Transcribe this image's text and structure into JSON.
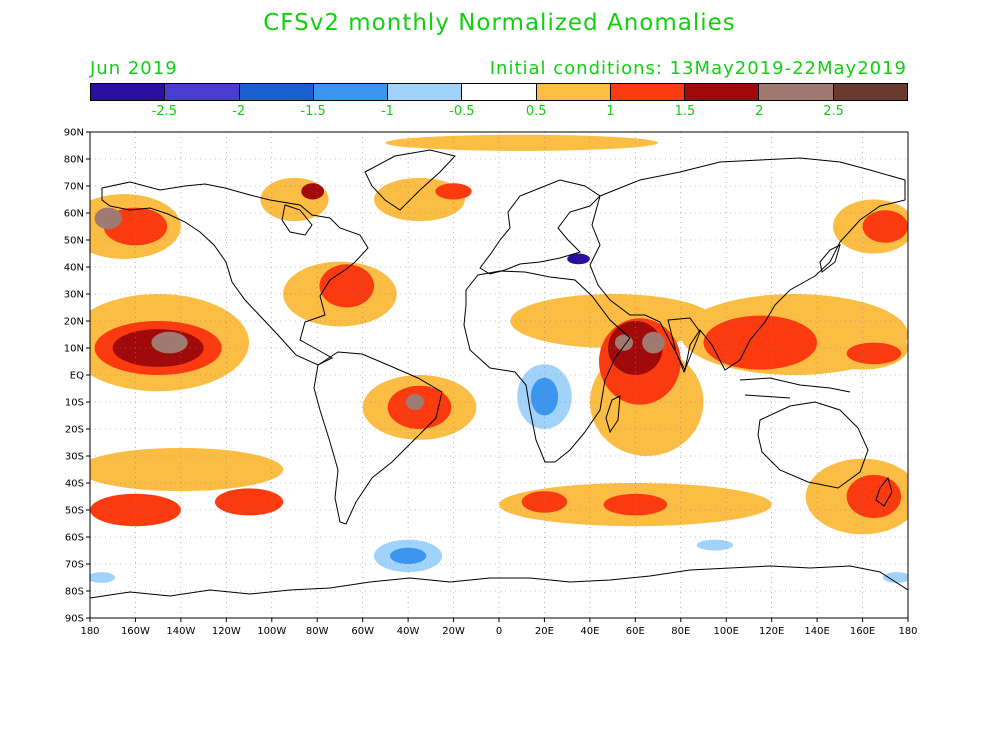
{
  "title": "CFSv2 monthly Normalized Anomalies",
  "subtitle_left": "Jun 2019",
  "subtitle_right": "Initial conditions: 13May2019-22May2019",
  "colorbar": {
    "colors": [
      "#2a0fa0",
      "#4a3ed0",
      "#1a60d0",
      "#3c96f0",
      "#a0d2fa",
      "#ffffff",
      "#fbbd44",
      "#fb3a10",
      "#a00a0a",
      "#a07a70",
      "#6b3a2e"
    ],
    "labels": [
      "-2.5",
      "-2",
      "-1.5",
      "-1",
      "-0.5",
      "0.5",
      "1",
      "1.5",
      "2",
      "2.5"
    ]
  },
  "axes": {
    "lon_labels": [
      "180",
      "160W",
      "140W",
      "120W",
      "100W",
      "80W",
      "60W",
      "40W",
      "20W",
      "0",
      "20E",
      "40E",
      "60E",
      "80E",
      "100E",
      "120E",
      "140E",
      "160E",
      "180"
    ],
    "lat_labels": [
      "90N",
      "80N",
      "70N",
      "60N",
      "50N",
      "40N",
      "30N",
      "20N",
      "10N",
      "EQ",
      "10S",
      "20S",
      "30S",
      "40S",
      "50S",
      "60S",
      "70S",
      "80S",
      "90S"
    ]
  },
  "map_data": {
    "lon_range": [
      -180,
      180
    ],
    "lat_range": [
      -90,
      90
    ],
    "anomaly_regions": [
      {
        "level": "0.5",
        "lon": -165,
        "lat": 55,
        "rx": 25,
        "ry": 12
      },
      {
        "level": "1.5",
        "lon": -160,
        "lat": 55,
        "rx": 14,
        "ry": 7
      },
      {
        "level": "2.5",
        "lon": -172,
        "lat": 58,
        "rx": 6,
        "ry": 4
      },
      {
        "level": "0.5",
        "lon": -150,
        "lat": 12,
        "rx": 40,
        "ry": 18
      },
      {
        "level": "1.5",
        "lon": -150,
        "lat": 10,
        "rx": 28,
        "ry": 10
      },
      {
        "level": "2",
        "lon": -150,
        "lat": 10,
        "rx": 20,
        "ry": 7
      },
      {
        "level": "2.5",
        "lon": -145,
        "lat": 12,
        "rx": 8,
        "ry": 4
      },
      {
        "level": "0.5",
        "lon": -140,
        "lat": -35,
        "rx": 45,
        "ry": 8
      },
      {
        "level": "1",
        "lon": -160,
        "lat": -50,
        "rx": 20,
        "ry": 6
      },
      {
        "level": "1.5",
        "lon": -110,
        "lat": -47,
        "rx": 15,
        "ry": 5
      },
      {
        "level": "0.5",
        "lon": -70,
        "lat": 30,
        "rx": 25,
        "ry": 12
      },
      {
        "level": "1.5",
        "lon": -67,
        "lat": 33,
        "rx": 12,
        "ry": 8
      },
      {
        "level": "0.5",
        "lon": -35,
        "lat": -12,
        "rx": 25,
        "ry": 12
      },
      {
        "level": "1.5",
        "lon": -35,
        "lat": -12,
        "rx": 14,
        "ry": 8
      },
      {
        "level": "2.5",
        "lon": -37,
        "lat": -10,
        "rx": 4,
        "ry": 3
      },
      {
        "level": "0.5",
        "lon": 50,
        "lat": 20,
        "rx": 45,
        "ry": 10
      },
      {
        "level": "0.5",
        "lon": 65,
        "lat": -10,
        "rx": 25,
        "ry": 20
      },
      {
        "level": "1.5",
        "lon": 62,
        "lat": 5,
        "rx": 18,
        "ry": 16
      },
      {
        "level": "2",
        "lon": 60,
        "lat": 10,
        "rx": 12,
        "ry": 10
      },
      {
        "level": "2.5",
        "lon": 55,
        "lat": 12,
        "rx": 4,
        "ry": 3
      },
      {
        "level": "2.5",
        "lon": 68,
        "lat": 12,
        "rx": 5,
        "ry": 4
      },
      {
        "level": "0.5",
        "lon": 130,
        "lat": 15,
        "rx": 50,
        "ry": 15
      },
      {
        "level": "1.5",
        "lon": 115,
        "lat": 12,
        "rx": 25,
        "ry": 10
      },
      {
        "level": "0.5",
        "lon": 160,
        "lat": 10,
        "rx": 20,
        "ry": 8
      },
      {
        "level": "1.5",
        "lon": 165,
        "lat": 8,
        "rx": 12,
        "ry": 4
      },
      {
        "level": "0.5",
        "lon": 165,
        "lat": 55,
        "rx": 18,
        "ry": 10
      },
      {
        "level": "1.5",
        "lon": 170,
        "lat": 55,
        "rx": 10,
        "ry": 6
      },
      {
        "level": "0.5",
        "lon": 160,
        "lat": -45,
        "rx": 25,
        "ry": 14
      },
      {
        "level": "1.5",
        "lon": 165,
        "lat": -45,
        "rx": 12,
        "ry": 8
      },
      {
        "level": "0.5",
        "lon": 60,
        "lat": -48,
        "rx": 60,
        "ry": 8
      },
      {
        "level": "1.5",
        "lon": 20,
        "lat": -47,
        "rx": 10,
        "ry": 4
      },
      {
        "level": "1.5",
        "lon": 60,
        "lat": -48,
        "rx": 14,
        "ry": 4
      },
      {
        "level": "-0.5",
        "lon": 20,
        "lat": -8,
        "rx": 12,
        "ry": 12
      },
      {
        "level": "-1",
        "lon": 20,
        "lat": -8,
        "rx": 6,
        "ry": 7
      },
      {
        "level": "-0.5",
        "lon": -40,
        "lat": -67,
        "rx": 15,
        "ry": 6
      },
      {
        "level": "-1",
        "lon": -40,
        "lat": -67,
        "rx": 8,
        "ry": 3
      },
      {
        "level": "-0.5",
        "lon": 95,
        "lat": -63,
        "rx": 8,
        "ry": 2
      },
      {
        "level": "-0.5",
        "lon": 175,
        "lat": -75,
        "rx": 6,
        "ry": 2
      },
      {
        "level": "-0.5",
        "lon": -175,
        "lat": -75,
        "rx": 6,
        "ry": 2
      },
      {
        "level": "-2.5",
        "lon": 35,
        "lat": 43,
        "rx": 5,
        "ry": 2
      },
      {
        "level": "0.5",
        "lon": 10,
        "lat": 86,
        "rx": 60,
        "ry": 3
      },
      {
        "level": "0.5",
        "lon": -35,
        "lat": 65,
        "rx": 20,
        "ry": 8
      },
      {
        "level": "1.5",
        "lon": -20,
        "lat": 68,
        "rx": 8,
        "ry": 3
      },
      {
        "level": "0.5",
        "lon": -90,
        "lat": 65,
        "rx": 15,
        "ry": 8
      },
      {
        "level": "2",
        "lon": -82,
        "lat": 68,
        "rx": 5,
        "ry": 3
      }
    ]
  }
}
